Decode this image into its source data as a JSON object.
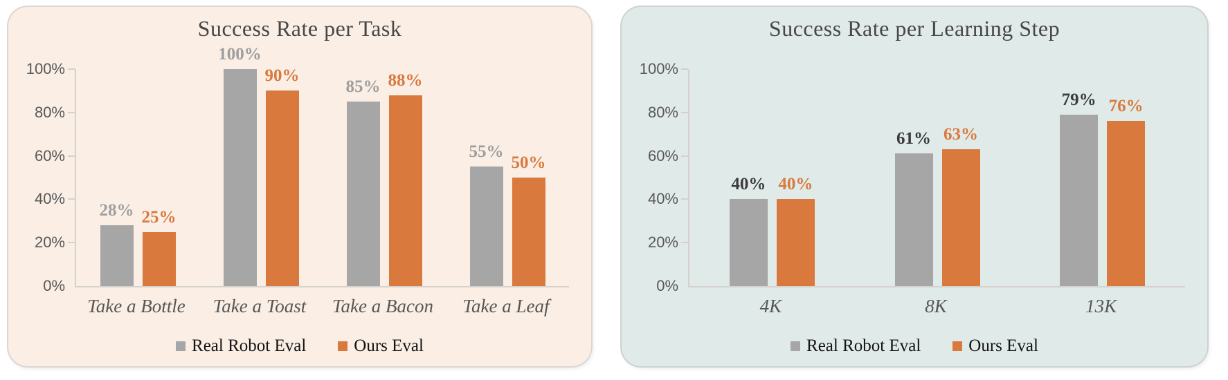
{
  "page": {
    "background": "#ffffff"
  },
  "chart_data": [
    {
      "type": "bar",
      "title": "Success Rate per Task",
      "panel_background": "#faeee5",
      "categories": [
        "Take a Bottle",
        "Take a Toast",
        "Take a Bacon",
        "Take a Leaf"
      ],
      "series": [
        {
          "name": "Real Robot Eval",
          "bar_color": "#a6a6a6",
          "data_label_color": "#9e9e9e",
          "values": [
            28,
            100,
            85,
            55
          ]
        },
        {
          "name": "Ours Eval",
          "bar_color": "#d9793e",
          "data_label_color": "#d9793e",
          "values": [
            25,
            90,
            88,
            50
          ]
        }
      ],
      "value_suffix": "%",
      "y_axis": {
        "ticks": [
          "100%",
          "80%",
          "60%",
          "40%",
          "20%",
          "0%"
        ],
        "min": 0,
        "max": 100
      },
      "legend_position": "bottom",
      "grid": "off"
    },
    {
      "type": "bar",
      "title": "Success Rate per Learning Step",
      "panel_background": "#e0eae8",
      "categories": [
        "4K",
        "8K",
        "13K"
      ],
      "series": [
        {
          "name": "Real Robot Eval",
          "bar_color": "#a6a6a6",
          "data_label_color": "#3b3b3b",
          "values": [
            40,
            61,
            79
          ]
        },
        {
          "name": "Ours Eval",
          "bar_color": "#d9793e",
          "data_label_color": "#d9793e",
          "values": [
            40,
            63,
            76
          ]
        }
      ],
      "value_suffix": "%",
      "y_axis": {
        "ticks": [
          "100%",
          "80%",
          "60%",
          "40%",
          "20%",
          "0%"
        ],
        "min": 0,
        "max": 100
      },
      "legend_position": "bottom",
      "grid": "off"
    }
  ]
}
